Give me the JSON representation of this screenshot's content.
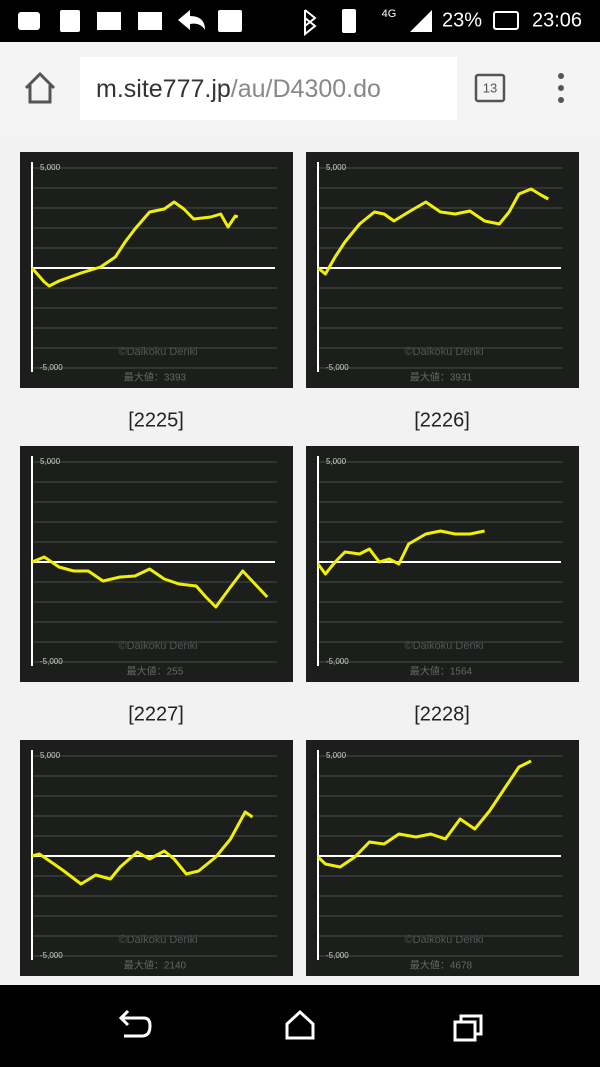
{
  "status_bar": {
    "network": "4G",
    "battery": "23%",
    "time": "23:06"
  },
  "browser": {
    "url_host": "m.site777.jp",
    "url_path": "/au/D4300.do",
    "tabs": "13"
  },
  "chart_data": [
    {
      "type": "line",
      "color": "#f0f000",
      "xlim": [
        0,
        100
      ],
      "ylim": [
        -5000,
        5000
      ],
      "yticks": [
        {
          "value": 5000,
          "label": "5,000"
        },
        {
          "value": 4000,
          "label": null
        },
        {
          "value": 3000,
          "label": null
        },
        {
          "value": 2000,
          "label": null
        },
        {
          "value": 1000,
          "label": null
        },
        {
          "value": -1000,
          "label": null
        },
        {
          "value": -2000,
          "label": null
        },
        {
          "value": -3000,
          "label": null
        },
        {
          "value": -4000,
          "label": null
        },
        {
          "value": -5000,
          "label": "-5,000"
        }
      ],
      "watermark": "©Daikoku Denki",
      "annotation": "最大値：3393",
      "x": [
        0,
        5,
        7,
        11,
        20,
        28,
        34,
        38,
        42,
        48,
        54,
        58,
        62,
        66,
        73,
        77,
        80,
        83,
        84
      ],
      "values": [
        0,
        -700,
        -900,
        -650,
        -250,
        50,
        550,
        1300,
        1950,
        2800,
        2950,
        3300,
        2950,
        2450,
        2550,
        2700,
        2050,
        2600,
        2550
      ]
    },
    {
      "type": "line",
      "color": "#f0f000",
      "xlim": [
        0,
        100
      ],
      "ylim": [
        -5000,
        5000
      ],
      "yticks": [
        {
          "value": 5000,
          "label": "5,000"
        },
        {
          "value": 4000,
          "label": null
        },
        {
          "value": 3000,
          "label": null
        },
        {
          "value": 2000,
          "label": null
        },
        {
          "value": 1000,
          "label": null
        },
        {
          "value": -1000,
          "label": null
        },
        {
          "value": -2000,
          "label": null
        },
        {
          "value": -3000,
          "label": null
        },
        {
          "value": -4000,
          "label": null
        },
        {
          "value": -5000,
          "label": "-5,000"
        }
      ],
      "watermark": "©Daikoku Denki",
      "annotation": "最大値：3931",
      "x": [
        0,
        3,
        7,
        11,
        17,
        23,
        27,
        31,
        37,
        44,
        50,
        56,
        62,
        68,
        74,
        78,
        82,
        87,
        91,
        94
      ],
      "values": [
        0,
        -300,
        550,
        1300,
        2200,
        2800,
        2700,
        2350,
        2800,
        3300,
        2800,
        2700,
        2850,
        2350,
        2200,
        2800,
        3700,
        3950,
        3650,
        3450
      ]
    },
    {
      "type": "line",
      "color": "#f0f000",
      "label": "[2225]",
      "xlim": [
        0,
        100
      ],
      "ylim": [
        -5000,
        5000
      ],
      "yticks": [
        {
          "value": 5000,
          "label": "5,000"
        },
        {
          "value": 4000,
          "label": null
        },
        {
          "value": 3000,
          "label": null
        },
        {
          "value": 2000,
          "label": null
        },
        {
          "value": 1000,
          "label": null
        },
        {
          "value": -1000,
          "label": null
        },
        {
          "value": -2000,
          "label": null
        },
        {
          "value": -3000,
          "label": null
        },
        {
          "value": -4000,
          "label": null
        },
        {
          "value": -5000,
          "label": "-5,000"
        }
      ],
      "watermark": "©Daikoku Denki",
      "annotation": "最大値：255",
      "x": [
        0,
        5,
        11,
        17,
        23,
        29,
        36,
        42,
        48,
        54,
        60,
        67,
        71,
        75,
        81,
        86,
        91,
        96
      ],
      "values": [
        0,
        250,
        -250,
        -450,
        -450,
        -950,
        -750,
        -700,
        -350,
        -850,
        -1100,
        -1200,
        -1750,
        -2250,
        -1250,
        -450,
        -1100,
        -1750
      ]
    },
    {
      "type": "line",
      "color": "#f0f000",
      "label": "[2226]",
      "xlim": [
        0,
        100
      ],
      "ylim": [
        -5000,
        5000
      ],
      "yticks": [
        {
          "value": 5000,
          "label": "5,000"
        },
        {
          "value": 4000,
          "label": null
        },
        {
          "value": 3000,
          "label": null
        },
        {
          "value": 2000,
          "label": null
        },
        {
          "value": 1000,
          "label": null
        },
        {
          "value": -1000,
          "label": null
        },
        {
          "value": -2000,
          "label": null
        },
        {
          "value": -3000,
          "label": null
        },
        {
          "value": -4000,
          "label": null
        },
        {
          "value": -5000,
          "label": "-5,000"
        }
      ],
      "watermark": "©Daikoku Denki",
      "annotation": "最大値：1564",
      "x": [
        0,
        3,
        7,
        11,
        17,
        21,
        25,
        29,
        33,
        37,
        44,
        50,
        56,
        62,
        68
      ],
      "values": [
        -100,
        -600,
        0,
        500,
        400,
        650,
        0,
        150,
        -100,
        900,
        1400,
        1550,
        1400,
        1400,
        1550
      ]
    },
    {
      "type": "line",
      "color": "#f0f000",
      "label": "[2227]",
      "xlim": [
        0,
        100
      ],
      "ylim": [
        -5000,
        5000
      ],
      "yticks": [
        {
          "value": 5000,
          "label": "5,000"
        },
        {
          "value": 4000,
          "label": null
        },
        {
          "value": 3000,
          "label": null
        },
        {
          "value": 2000,
          "label": null
        },
        {
          "value": 1000,
          "label": null
        },
        {
          "value": -1000,
          "label": null
        },
        {
          "value": -2000,
          "label": null
        },
        {
          "value": -3000,
          "label": null
        },
        {
          "value": -4000,
          "label": null
        },
        {
          "value": -5000,
          "label": "-5,000"
        }
      ],
      "watermark": "©Daikoku Denki",
      "annotation": "最大値：2140",
      "x": [
        0,
        3,
        9,
        13,
        20,
        26,
        32,
        36,
        43,
        48,
        54,
        58,
        63,
        68,
        75,
        81,
        87,
        90
      ],
      "values": [
        0,
        100,
        -400,
        -750,
        -1400,
        -950,
        -1150,
        -550,
        200,
        -150,
        250,
        -150,
        -900,
        -750,
        -50,
        850,
        2200,
        1950
      ]
    },
    {
      "type": "line",
      "color": "#f0f000",
      "label": "[2228]",
      "xlim": [
        0,
        100
      ],
      "ylim": [
        -5000,
        5000
      ],
      "yticks": [
        {
          "value": 5000,
          "label": "5,000"
        },
        {
          "value": 4000,
          "label": null
        },
        {
          "value": 3000,
          "label": null
        },
        {
          "value": 2000,
          "label": null
        },
        {
          "value": 1000,
          "label": null
        },
        {
          "value": -1000,
          "label": null
        },
        {
          "value": -2000,
          "label": null
        },
        {
          "value": -3000,
          "label": null
        },
        {
          "value": -4000,
          "label": null
        },
        {
          "value": -5000,
          "label": "-5,000"
        }
      ],
      "watermark": "©Daikoku Denki",
      "annotation": "最大値：4678",
      "x": [
        0,
        3,
        9,
        15,
        21,
        27,
        33,
        40,
        46,
        52,
        58,
        64,
        70,
        76,
        82,
        87
      ],
      "values": [
        -50,
        -400,
        -550,
        -50,
        700,
        600,
        1100,
        950,
        1100,
        850,
        1850,
        1350,
        2250,
        3350,
        4450,
        4750
      ]
    }
  ]
}
